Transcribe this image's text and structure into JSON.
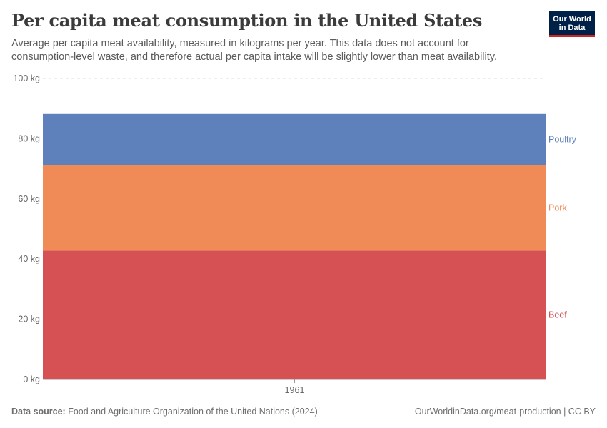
{
  "header": {
    "title": "Per capita meat consumption in the United States",
    "subtitle": "Average per capita meat availability, measured in kilograms per year. This data does not account for consumption-level waste, and therefore actual per capita intake will be slightly lower than meat availability.",
    "logo_line1": "Our World",
    "logo_line2": "in Data"
  },
  "footer": {
    "source_label": "Data source:",
    "source_text": "Food and Agriculture Organization of the United Nations (2024)",
    "link": "OurWorldinData.org/meat-production | CC BY"
  },
  "colors": {
    "Beef": "#d65154",
    "Pork": "#f08a57",
    "Poultry": "#5f81bb",
    "logo_bg": "#002147",
    "logo_accent": "#ce261e"
  },
  "chart_data": {
    "type": "area",
    "stacked": true,
    "x": [
      1961
    ],
    "x_tick_labels": [
      "1961"
    ],
    "y_ticks": [
      0,
      20,
      40,
      60,
      80,
      100
    ],
    "y_tick_labels": [
      "0 kg",
      "20 kg",
      "40 kg",
      "60 kg",
      "80 kg",
      "100 kg"
    ],
    "ylim": [
      0,
      100
    ],
    "unit": "kg",
    "grid": "horizontal-dashed",
    "legend_placement": "right (inline labels)",
    "series": [
      {
        "name": "Beef",
        "values": [
          42.8
        ]
      },
      {
        "name": "Pork",
        "values": [
          28.4
        ]
      },
      {
        "name": "Poultry",
        "values": [
          17.0
        ]
      }
    ]
  }
}
